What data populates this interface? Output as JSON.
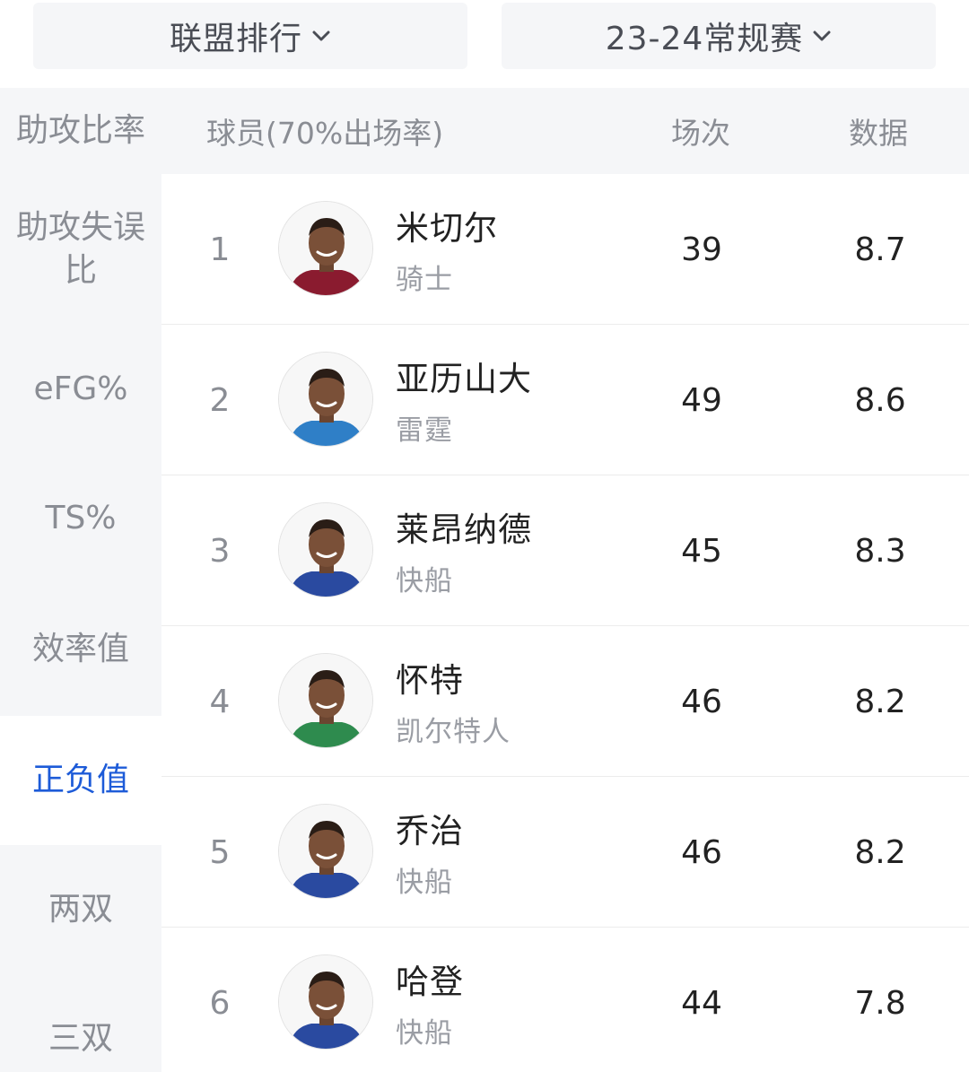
{
  "filters": {
    "league_label": "联盟排行",
    "season_label": "23-24常规赛"
  },
  "sidebar": {
    "items": [
      {
        "label": "助攻比率",
        "active": false
      },
      {
        "label": "助攻失误比",
        "active": false
      },
      {
        "label": "eFG%",
        "active": false
      },
      {
        "label": "TS%",
        "active": false
      },
      {
        "label": "效率值",
        "active": false
      },
      {
        "label": "正负值",
        "active": true
      },
      {
        "label": "两双",
        "active": false
      },
      {
        "label": "三双",
        "active": false
      }
    ]
  },
  "table": {
    "headers": {
      "player": "球员(70%出场率)",
      "games": "场次",
      "stat": "数据"
    },
    "rows": [
      {
        "rank": "1",
        "name": "米切尔",
        "team": "骑士",
        "games": "39",
        "stat": "8.7",
        "jersey_color": "#8a1b2f"
      },
      {
        "rank": "2",
        "name": "亚历山大",
        "team": "雷霆",
        "games": "49",
        "stat": "8.6",
        "jersey_color": "#2f7fc7"
      },
      {
        "rank": "3",
        "name": "莱昂纳德",
        "team": "快船",
        "games": "45",
        "stat": "8.3",
        "jersey_color": "#2a4aa0"
      },
      {
        "rank": "4",
        "name": "怀特",
        "team": "凯尔特人",
        "games": "46",
        "stat": "8.2",
        "jersey_color": "#2e8b4e"
      },
      {
        "rank": "5",
        "name": "乔治",
        "team": "快船",
        "games": "46",
        "stat": "8.2",
        "jersey_color": "#2a4aa0"
      },
      {
        "rank": "6",
        "name": "哈登",
        "team": "快船",
        "games": "44",
        "stat": "7.8",
        "jersey_color": "#2a4aa0"
      }
    ]
  },
  "colors": {
    "accent": "#1d5bd8",
    "sidebar_bg": "#f5f6f8",
    "muted_text": "#8a8d94"
  }
}
